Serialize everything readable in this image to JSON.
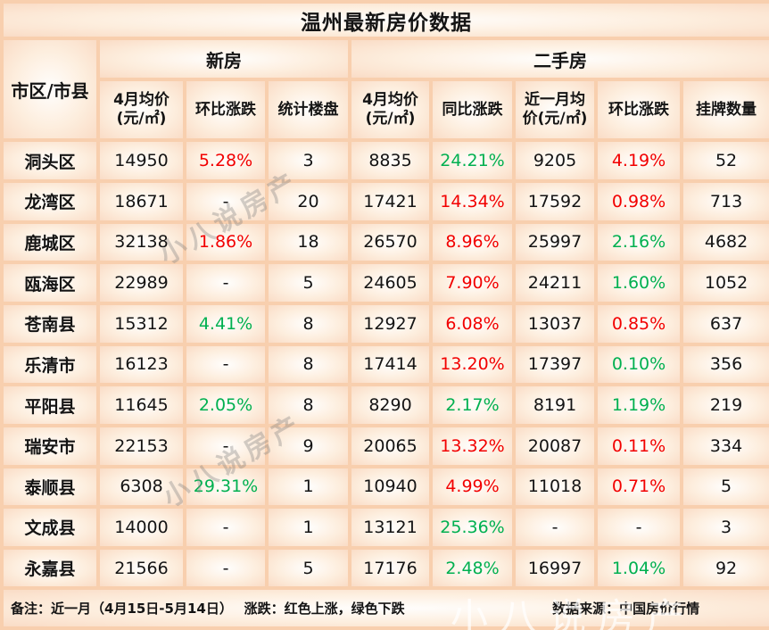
{
  "title": "温州最新房价数据",
  "table": {
    "corner_header": "市区/市县",
    "group_new": "新房",
    "group_second_hand": "二手房",
    "headers": {
      "new_price": "4月均价\n(元/㎡)",
      "new_mom": "环比涨跌",
      "new_count": "统计楼盘",
      "sh_price": "4月均价\n(元/㎡)",
      "sh_yoy": "同比涨跌",
      "sh_month_price": "近一月均\n价(元/㎡)",
      "sh_mom": "环比涨跌",
      "sh_listings": "挂牌数量"
    },
    "rows": [
      {
        "district": "洞头区",
        "new_price": "14950",
        "new_mom": {
          "text": "5.28%",
          "dir": "up"
        },
        "new_count": "3",
        "sh_price": "8835",
        "sh_yoy": {
          "text": "24.21%",
          "dir": "down"
        },
        "sh_month_price": "9205",
        "sh_mom": {
          "text": "4.19%",
          "dir": "up"
        },
        "sh_listings": "52"
      },
      {
        "district": "龙湾区",
        "new_price": "18671",
        "new_mom": {
          "text": "-",
          "dir": null
        },
        "new_count": "20",
        "sh_price": "17421",
        "sh_yoy": {
          "text": "14.34%",
          "dir": "up"
        },
        "sh_month_price": "17592",
        "sh_mom": {
          "text": "0.98%",
          "dir": "up"
        },
        "sh_listings": "713"
      },
      {
        "district": "鹿城区",
        "new_price": "32138",
        "new_mom": {
          "text": "1.86%",
          "dir": "up"
        },
        "new_count": "18",
        "sh_price": "26570",
        "sh_yoy": {
          "text": "8.96%",
          "dir": "up"
        },
        "sh_month_price": "25997",
        "sh_mom": {
          "text": "2.16%",
          "dir": "down"
        },
        "sh_listings": "4682"
      },
      {
        "district": "瓯海区",
        "new_price": "22989",
        "new_mom": {
          "text": "-",
          "dir": null
        },
        "new_count": "5",
        "sh_price": "24605",
        "sh_yoy": {
          "text": "7.90%",
          "dir": "up"
        },
        "sh_month_price": "24211",
        "sh_mom": {
          "text": "1.60%",
          "dir": "down"
        },
        "sh_listings": "1052"
      },
      {
        "district": "苍南县",
        "new_price": "15312",
        "new_mom": {
          "text": "4.41%",
          "dir": "down"
        },
        "new_count": "8",
        "sh_price": "12927",
        "sh_yoy": {
          "text": "6.08%",
          "dir": "up"
        },
        "sh_month_price": "13037",
        "sh_mom": {
          "text": "0.85%",
          "dir": "up"
        },
        "sh_listings": "637"
      },
      {
        "district": "乐清市",
        "new_price": "16123",
        "new_mom": {
          "text": "-",
          "dir": null
        },
        "new_count": "8",
        "sh_price": "17414",
        "sh_yoy": {
          "text": "13.20%",
          "dir": "up"
        },
        "sh_month_price": "17397",
        "sh_mom": {
          "text": "0.10%",
          "dir": "down"
        },
        "sh_listings": "356"
      },
      {
        "district": "平阳县",
        "new_price": "11645",
        "new_mom": {
          "text": "2.05%",
          "dir": "down"
        },
        "new_count": "8",
        "sh_price": "8290",
        "sh_yoy": {
          "text": "2.17%",
          "dir": "down"
        },
        "sh_month_price": "8191",
        "sh_mom": {
          "text": "1.19%",
          "dir": "down"
        },
        "sh_listings": "219"
      },
      {
        "district": "瑞安市",
        "new_price": "22153",
        "new_mom": {
          "text": "-",
          "dir": null
        },
        "new_count": "9",
        "sh_price": "20065",
        "sh_yoy": {
          "text": "13.32%",
          "dir": "up"
        },
        "sh_month_price": "20087",
        "sh_mom": {
          "text": "0.11%",
          "dir": "up"
        },
        "sh_listings": "334"
      },
      {
        "district": "泰顺县",
        "new_price": "6308",
        "new_mom": {
          "text": "29.31%",
          "dir": "down"
        },
        "new_count": "1",
        "sh_price": "10940",
        "sh_yoy": {
          "text": "4.99%",
          "dir": "up"
        },
        "sh_month_price": "11018",
        "sh_mom": {
          "text": "0.71%",
          "dir": "up"
        },
        "sh_listings": "5"
      },
      {
        "district": "文成县",
        "new_price": "14000",
        "new_mom": {
          "text": "-",
          "dir": null
        },
        "new_count": "1",
        "sh_price": "13121",
        "sh_yoy": {
          "text": "25.36%",
          "dir": "down"
        },
        "sh_month_price": "-",
        "sh_mom": {
          "text": "-",
          "dir": null
        },
        "sh_listings": "3"
      },
      {
        "district": "永嘉县",
        "new_price": "21566",
        "new_mom": {
          "text": "-",
          "dir": null
        },
        "new_count": "5",
        "sh_price": "17176",
        "sh_yoy": {
          "text": "2.48%",
          "dir": "down"
        },
        "sh_month_price": "16997",
        "sh_mom": {
          "text": "1.04%",
          "dir": "down"
        },
        "sh_listings": "92"
      }
    ]
  },
  "footer": {
    "note": "备注：近一月（4月15日-5月14日）　 涨跌：红色上涨，绿色下跌",
    "source": "数据来源：中国房价行情"
  },
  "watermark": {
    "text": "小八说房产"
  },
  "colors": {
    "up_red": "#f20000",
    "down_green": "#00b050",
    "border": "#f8cfae"
  }
}
